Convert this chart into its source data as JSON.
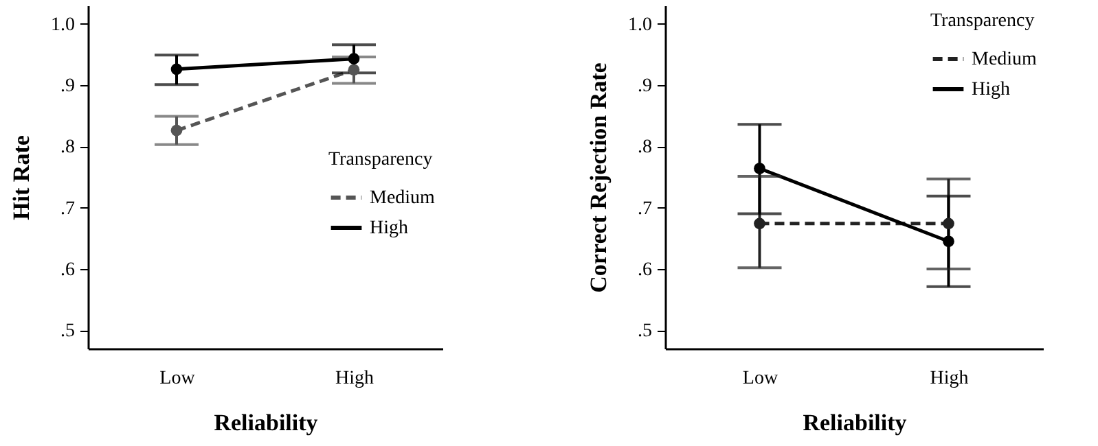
{
  "chart_data": [
    {
      "type": "line",
      "xlabel": "Reliability",
      "ylabel": "Hit Rate",
      "legend_title": "Transparency",
      "legend": "right",
      "marker": "circle",
      "categories": [
        "Low",
        "High"
      ],
      "ylim": [
        0.47,
        1.03
      ],
      "yticks": [
        {
          "value": 0.5,
          "label": ".5"
        },
        {
          "value": 0.6,
          "label": ".6"
        },
        {
          "value": 0.7,
          "label": ".7"
        },
        {
          "value": 0.8,
          "label": ".8"
        },
        {
          "value": 0.9,
          "label": ".9"
        },
        {
          "value": 1.0,
          "label": "1.0"
        }
      ],
      "series": [
        {
          "name": "Medium",
          "color": "#555555",
          "line_style": "dashed",
          "values": [
            0.826,
            0.925
          ],
          "errors": [
            [
              0.803,
              0.849
            ],
            [
              0.903,
              0.946
            ]
          ]
        },
        {
          "name": "High",
          "color": "#000000",
          "line_style": "solid",
          "values": [
            0.926,
            0.943
          ],
          "errors": [
            [
              0.901,
              0.949
            ],
            [
              0.92,
              0.966
            ]
          ]
        }
      ]
    },
    {
      "type": "line",
      "xlabel": "Reliability",
      "ylabel": "Correct Rejection Rate",
      "legend_title": "Transparency",
      "legend": "top right",
      "marker": "circle",
      "categories": [
        "Low",
        "High"
      ],
      "ylim": [
        0.47,
        1.03
      ],
      "yticks": [
        {
          "value": 0.5,
          "label": ".5"
        },
        {
          "value": 0.6,
          "label": ".6"
        },
        {
          "value": 0.7,
          "label": ".7"
        },
        {
          "value": 0.8,
          "label": ".8"
        },
        {
          "value": 0.9,
          "label": ".9"
        },
        {
          "value": 1.0,
          "label": "1.0"
        }
      ],
      "series": [
        {
          "name": "Medium",
          "color": "#222222",
          "line_style": "dashed",
          "values": [
            0.674,
            0.674
          ],
          "errors": [
            [
              0.602,
              0.751
            ],
            [
              0.6,
              0.747
            ]
          ]
        },
        {
          "name": "High",
          "color": "#000000",
          "line_style": "solid",
          "values": [
            0.764,
            0.645
          ],
          "errors": [
            [
              0.69,
              0.836
            ],
            [
              0.571,
              0.719
            ]
          ]
        }
      ]
    }
  ]
}
